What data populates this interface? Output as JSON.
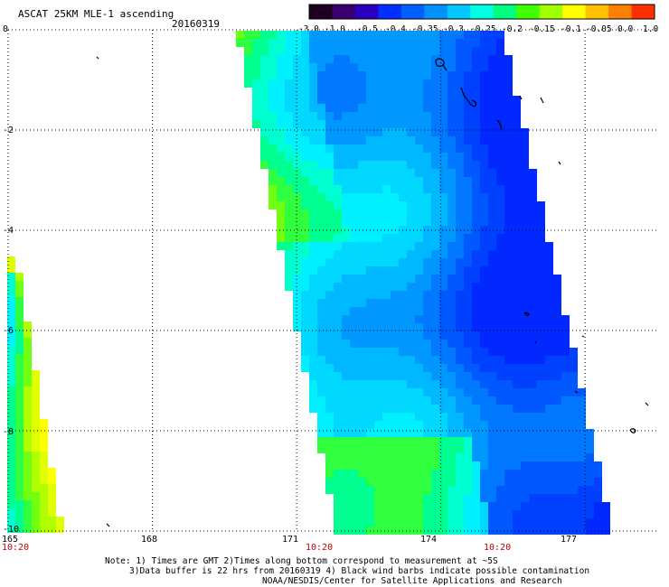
{
  "header": {
    "title": "ASCAT 25KM MLE-1 ascending",
    "date": "20160319"
  },
  "colorbar": {
    "tick_labels": [
      "-3.0",
      "-1.0",
      "-0.5",
      "-0.4",
      "-0.35",
      "-0.3",
      "-0.25",
      "-0.2",
      "-0.15",
      "-0.1",
      "-0.05",
      "0.0",
      "1.0"
    ],
    "colors": [
      "#200020",
      "#3a0070",
      "#2a00c0",
      "#0030ff",
      "#0060ff",
      "#0090ff",
      "#00c8ff",
      "#00ffe0",
      "#00ff80",
      "#40ff00",
      "#a0ff00",
      "#ffff00",
      "#ffc000",
      "#ff8000",
      "#ff3000"
    ]
  },
  "map": {
    "lat_labels": [
      "0",
      "-2",
      "-4",
      "-6",
      "-8",
      "-10"
    ],
    "lon_labels": [
      "165",
      "168",
      "171",
      "174",
      "177"
    ],
    "time_labels": [
      "10:20",
      "10:20",
      "10:20"
    ],
    "lon_range": [
      165,
      178.5
    ],
    "lat_range": [
      -10,
      0
    ]
  },
  "notes": {
    "line1": "Note: 1) Times are GMT 2)Times along bottom correspond to measurement at ~5S",
    "line2": "3)Data buffer is 22 hrs from 20160319 4) Black wind barbs indicate possible contamination",
    "line3": "NOAA/NESDIS/Center for Satellite Applications and Research"
  }
}
